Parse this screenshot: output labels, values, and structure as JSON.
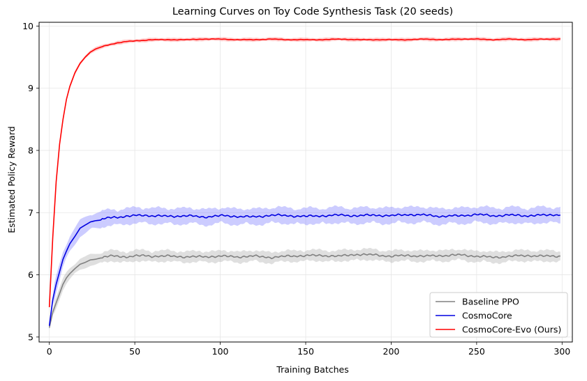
{
  "chart_data": {
    "type": "line",
    "title": "Learning Curves on Toy Code Synthesis Task (20 seeds)",
    "xlabel": "Training Batches",
    "ylabel": "Estimated Policy Reward",
    "xlim": [
      -6,
      306
    ],
    "ylim": [
      4.92,
      10.06
    ],
    "xticks": [
      0,
      50,
      100,
      150,
      200,
      250,
      300
    ],
    "yticks": [
      5,
      6,
      7,
      8,
      9,
      10
    ],
    "grid": true,
    "legend_position": "lower-right",
    "series": [
      {
        "name": "Baseline PPO",
        "color": "#808080",
        "band_color": "#b0b0b0",
        "x": [
          0,
          2,
          4,
          6,
          8,
          10,
          12,
          15,
          18,
          21,
          24,
          27,
          30,
          35,
          40,
          45,
          50,
          55,
          60,
          70,
          80,
          90,
          100,
          110,
          120,
          130,
          140,
          150,
          160,
          170,
          180,
          190,
          200,
          210,
          220,
          230,
          240,
          250,
          260,
          270,
          280,
          290,
          299
        ],
        "values": [
          5.15,
          5.4,
          5.55,
          5.7,
          5.85,
          5.95,
          6.02,
          6.1,
          6.17,
          6.2,
          6.24,
          6.25,
          6.27,
          6.3,
          6.3,
          6.29,
          6.3,
          6.31,
          6.3,
          6.3,
          6.29,
          6.29,
          6.3,
          6.29,
          6.3,
          6.28,
          6.3,
          6.31,
          6.31,
          6.3,
          6.33,
          6.32,
          6.3,
          6.31,
          6.3,
          6.31,
          6.32,
          6.3,
          6.28,
          6.3,
          6.31,
          6.3,
          6.3
        ],
        "band": 0.09
      },
      {
        "name": "CosmoCore",
        "color": "#0000e0",
        "band_color": "#8080ff",
        "x": [
          0,
          2,
          4,
          6,
          8,
          10,
          12,
          15,
          18,
          21,
          24,
          27,
          30,
          35,
          40,
          45,
          50,
          55,
          60,
          70,
          80,
          90,
          100,
          110,
          120,
          130,
          140,
          150,
          160,
          170,
          180,
          190,
          200,
          210,
          220,
          230,
          240,
          250,
          260,
          270,
          280,
          290,
          299
        ],
        "values": [
          5.18,
          5.6,
          5.85,
          6.05,
          6.25,
          6.38,
          6.5,
          6.62,
          6.75,
          6.8,
          6.85,
          6.87,
          6.88,
          6.92,
          6.93,
          6.94,
          6.95,
          6.96,
          6.95,
          6.94,
          6.95,
          6.93,
          6.95,
          6.94,
          6.93,
          6.96,
          6.95,
          6.94,
          6.95,
          6.96,
          6.95,
          6.96,
          6.95,
          6.97,
          6.96,
          6.94,
          6.95,
          6.97,
          6.95,
          6.96,
          6.95,
          6.96,
          6.97
        ],
        "band": 0.13
      },
      {
        "name": "CosmoCore-Evo (Ours)",
        "color": "#ff0000",
        "band_color": "#ff8080",
        "x": [
          0,
          2,
          4,
          6,
          8,
          10,
          12,
          15,
          18,
          21,
          24,
          27,
          30,
          35,
          40,
          45,
          50,
          55,
          60,
          70,
          80,
          90,
          100,
          110,
          120,
          130,
          140,
          150,
          160,
          170,
          180,
          190,
          200,
          210,
          220,
          230,
          240,
          250,
          260,
          270,
          280,
          290,
          299
        ],
        "values": [
          5.48,
          6.6,
          7.5,
          8.1,
          8.5,
          8.82,
          9.03,
          9.25,
          9.4,
          9.5,
          9.58,
          9.63,
          9.66,
          9.7,
          9.73,
          9.75,
          9.76,
          9.77,
          9.78,
          9.78,
          9.78,
          9.79,
          9.79,
          9.78,
          9.78,
          9.79,
          9.78,
          9.78,
          9.78,
          9.79,
          9.78,
          9.78,
          9.78,
          9.78,
          9.79,
          9.78,
          9.79,
          9.79,
          9.78,
          9.79,
          9.78,
          9.79,
          9.79
        ],
        "band": 0.03
      }
    ]
  }
}
